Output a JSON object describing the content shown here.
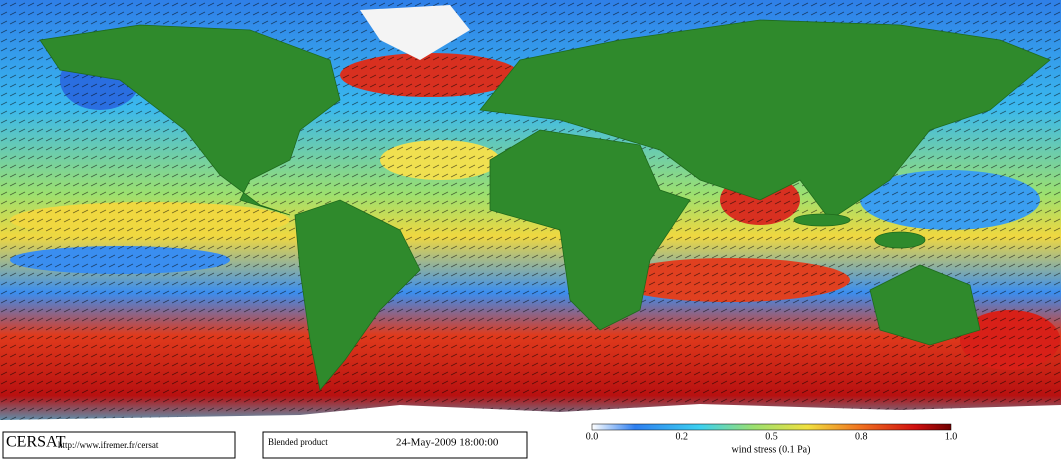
{
  "logo": "CERSAT",
  "url": "http://www.ifremer.fr/cersat",
  "product": "Blended product",
  "timestamp": "24-May-2009 18:00:00",
  "colorbar": {
    "ticks": [
      "0.0",
      "0.2",
      "0.5",
      "0.8",
      "1.0"
    ],
    "label": "wind stress (0.1 Pa)"
  }
}
